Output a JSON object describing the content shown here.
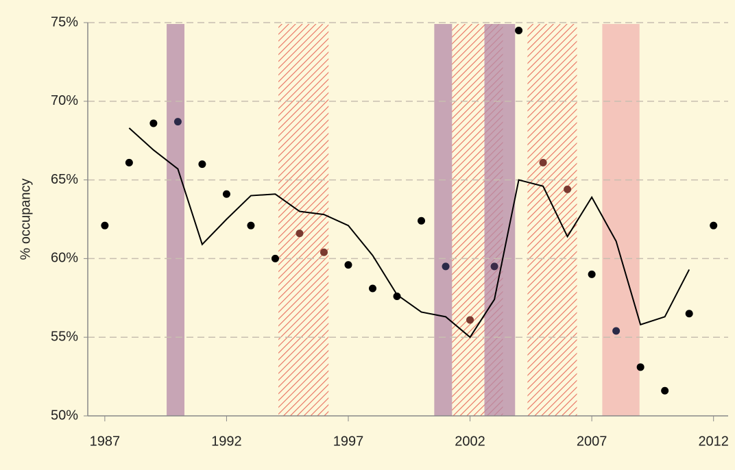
{
  "chart_data": {
    "type": "scatter",
    "y_label": "% occupancy",
    "xlim": [
      1986.3,
      2012.6
    ],
    "ylim": [
      50,
      75
    ],
    "xticks": [
      1987,
      1992,
      1997,
      2002,
      2007,
      2012
    ],
    "yticks": [
      {
        "value": 50,
        "label": "50%"
      },
      {
        "value": 55,
        "label": "55%"
      },
      {
        "value": 60,
        "label": "60%"
      },
      {
        "value": 65,
        "label": "65%"
      },
      {
        "value": 70,
        "label": "70%"
      },
      {
        "value": 75,
        "label": "75%"
      }
    ],
    "grid": true,
    "background": "#fdf8dc",
    "bands": [
      {
        "x": [
          1989.54,
          1990.27
        ],
        "color": "#b48aa8",
        "style": "solid"
      },
      {
        "x": [
          1994.13,
          1996.19
        ],
        "color": "#e06a5a",
        "style": "hatch"
      },
      {
        "x": [
          2000.53,
          2001.26
        ],
        "color": "#b48aa8",
        "style": "solid"
      },
      {
        "x": [
          2001.26,
          2003.35
        ],
        "color": "#e06a5a",
        "style": "hatch"
      },
      {
        "x": [
          2002.59,
          2003.85
        ],
        "color": "#b48aa8",
        "style": "solid"
      },
      {
        "x": [
          2004.36,
          2006.39
        ],
        "color": "#e06a5a",
        "style": "hatch"
      },
      {
        "x": [
          2007.43,
          2008.96
        ],
        "color": "#f0b4b0",
        "style": "solid"
      }
    ],
    "points": {
      "x": [
        1987,
        1988,
        1989,
        1990,
        1991,
        1992,
        1993,
        1994,
        1995,
        1996,
        1997,
        1998,
        1999,
        2000,
        2001,
        2002,
        2003,
        2004,
        2005,
        2006,
        2007,
        2008,
        2009,
        2010,
        2011,
        2012
      ],
      "values": [
        62.1,
        66.1,
        68.6,
        68.7,
        66.0,
        64.1,
        62.1,
        60.0,
        61.6,
        60.4,
        59.6,
        58.1,
        57.6,
        62.4,
        59.5,
        56.1,
        59.5,
        74.5,
        66.1,
        64.4,
        59.0,
        55.4,
        53.1,
        51.6,
        56.5,
        62.1
      ],
      "colors": [
        "#000000",
        "#000000",
        "#000000",
        "#2a2a48",
        "#000000",
        "#000000",
        "#000000",
        "#000000",
        "#7a3a30",
        "#7a3a30",
        "#000000",
        "#000000",
        "#000000",
        "#000000",
        "#2a2a48",
        "#7a3a30",
        "#3a2a48",
        "#000000",
        "#7a3a30",
        "#7a3a30",
        "#000000",
        "#2a2a48",
        "#000000",
        "#000000",
        "#000000",
        "#000000"
      ]
    },
    "line": {
      "color": "#000000",
      "x": [
        1988,
        1989,
        1990,
        1991,
        1992,
        1993,
        1994,
        1995,
        1996,
        1997,
        1998,
        1999,
        2000,
        2001,
        2002,
        2003,
        2004,
        2005,
        2006,
        2007,
        2008,
        2009,
        2010,
        2011
      ],
      "values": [
        68.3,
        66.9,
        65.7,
        60.9,
        62.5,
        64.0,
        64.1,
        63.0,
        62.8,
        62.1,
        60.2,
        57.7,
        56.6,
        56.3,
        55.0,
        57.4,
        65.0,
        64.6,
        61.4,
        63.9,
        61.1,
        55.8,
        56.3,
        59.3
      ]
    }
  }
}
